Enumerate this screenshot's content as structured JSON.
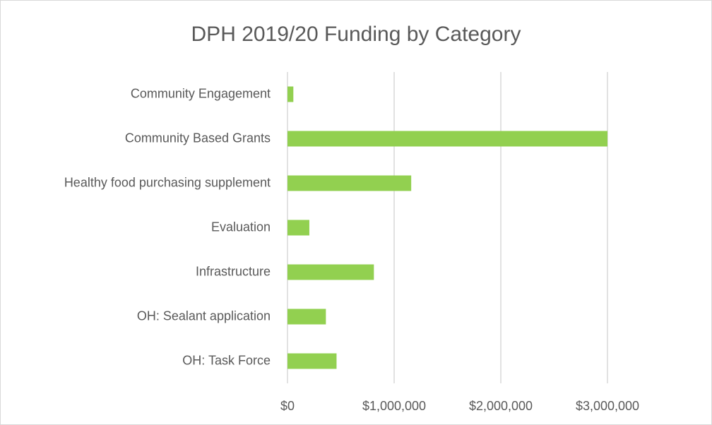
{
  "chart_data": {
    "type": "bar",
    "orientation": "horizontal",
    "title": "DPH 2019/20 Funding by Category",
    "categories": [
      "Community Engagement",
      "Community Based Grants",
      "Healthy food purchasing supplement",
      "Evaluation",
      "Infrastructure",
      "OH: Sealant application",
      "OH: Task Force"
    ],
    "values": [
      55000,
      3000000,
      1160000,
      205000,
      810000,
      360000,
      460000
    ],
    "color": "#92d050",
    "xlim": [
      0,
      3000000
    ],
    "xticks": [
      {
        "value": 0,
        "label": "$0"
      },
      {
        "value": 1000000,
        "label": "$1,000,000"
      },
      {
        "value": 2000000,
        "label": "$2,000,000"
      },
      {
        "value": 3000000,
        "label": "$3,000,000"
      }
    ],
    "grid": true
  }
}
